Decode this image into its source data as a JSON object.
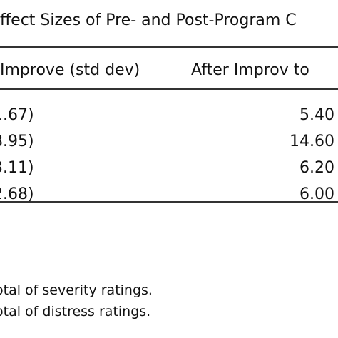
{
  "caption": "ffect Sizes of Pre- and Post-Program C",
  "columns": {
    "col1": "Improve (std dev)",
    "col2": "After Improv to"
  },
  "rows": [
    {
      "left": "1.67)",
      "right": "5.40"
    },
    {
      "left": "8.95)",
      "right": "14.60"
    },
    {
      "left": "3.11)",
      "right": "6.20"
    },
    {
      "left": "2.68)",
      "right": "6.00"
    }
  ],
  "notes": [
    "otal of severity ratings.",
    "otal of distress ratings."
  ]
}
